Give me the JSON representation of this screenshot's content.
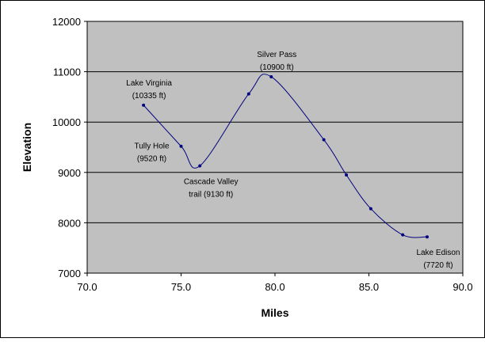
{
  "chart_data": {
    "type": "line",
    "xlabel": "Miles",
    "ylabel": "Elevation",
    "xlim": [
      70.0,
      90.0
    ],
    "ylim": [
      7000,
      12000
    ],
    "x_ticks": [
      70,
      75,
      80,
      85,
      90
    ],
    "x_tick_labels": [
      "70.0",
      "75.0",
      "80.0",
      "85.0",
      "90.0"
    ],
    "y_ticks": [
      7000,
      8000,
      9000,
      10000,
      11000,
      12000
    ],
    "y_tick_labels": [
      "7000",
      "8000",
      "9000",
      "10000",
      "11000",
      "12000"
    ],
    "grid": "horizontal",
    "smooth": true,
    "colors": {
      "plot_bg": "#c0c0c0",
      "line": "#000080",
      "grid": "#000000",
      "frame": "#000000"
    },
    "series": [
      {
        "x": [
          73.0,
          75.0,
          76.0,
          78.6,
          79.8,
          82.6,
          83.8,
          85.1,
          86.8,
          88.1
        ],
        "y": [
          10335,
          9520,
          9130,
          10560,
          10900,
          9650,
          8950,
          8280,
          7760,
          7720
        ]
      }
    ],
    "annotations": [
      {
        "anchor_x": 73.0,
        "anchor_y": 10335,
        "lines": [
          "Lake Virginia",
          "(10335 ft)"
        ],
        "placement": "above"
      },
      {
        "anchor_x": 75.0,
        "anchor_y": 9520,
        "lines": [
          "Tully Hole",
          "(9520 ft)"
        ],
        "placement": "left"
      },
      {
        "anchor_x": 76.0,
        "anchor_y": 9130,
        "lines": [
          "Cascade Valley",
          "trail (9130 ft)"
        ],
        "placement": "below"
      },
      {
        "anchor_x": 79.8,
        "anchor_y": 10900,
        "lines": [
          "Silver Pass",
          "(10900 ft)"
        ],
        "placement": "above"
      },
      {
        "anchor_x": 88.1,
        "anchor_y": 7720,
        "lines": [
          "Lake Edison",
          "(7720 ft)"
        ],
        "placement": "below"
      }
    ]
  }
}
